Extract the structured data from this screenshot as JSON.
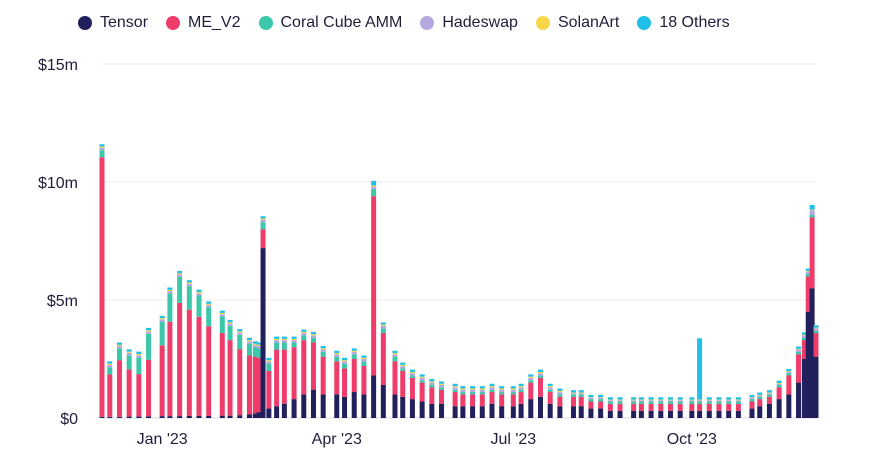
{
  "chart_data": {
    "type": "bar",
    "stacked": true,
    "title": "",
    "xlabel": "",
    "ylabel": "",
    "ylim": [
      0,
      15
    ],
    "y_unit": "millions USD",
    "y_ticks": [
      "$0",
      "$5m",
      "$10m",
      "$15m"
    ],
    "y_tick_values": [
      0,
      5,
      10,
      15
    ],
    "x_ticks": [
      "Jan '23",
      "Apr '23",
      "Jul '23",
      "Oct '23"
    ],
    "x_tick_dates": [
      "2023-01-01",
      "2023-04-01",
      "2023-07-01",
      "2023-10-01"
    ],
    "grid": true,
    "legend_position": "top-left",
    "series_names": [
      "Tensor",
      "ME_V2",
      "Coral Cube AMM",
      "Hadeswap",
      "SolanArt",
      "18 Others"
    ],
    "colors": [
      "#22205c",
      "#ee3d6a",
      "#3cc7aa",
      "#b5a8e0",
      "#f7d64a",
      "#1fc1e8"
    ],
    "dates": [
      "2022-12-01",
      "2022-12-05",
      "2022-12-10",
      "2022-12-15",
      "2022-12-20",
      "2022-12-25",
      "2023-01-01",
      "2023-01-05",
      "2023-01-10",
      "2023-01-15",
      "2023-01-20",
      "2023-01-25",
      "2023-02-01",
      "2023-02-05",
      "2023-02-10",
      "2023-02-15",
      "2023-02-18",
      "2023-02-20",
      "2023-02-22",
      "2023-02-25",
      "2023-03-01",
      "2023-03-05",
      "2023-03-10",
      "2023-03-15",
      "2023-03-20",
      "2023-03-25",
      "2023-04-01",
      "2023-04-05",
      "2023-04-10",
      "2023-04-15",
      "2023-04-20",
      "2023-04-25",
      "2023-05-01",
      "2023-05-05",
      "2023-05-10",
      "2023-05-15",
      "2023-05-20",
      "2023-05-25",
      "2023-06-01",
      "2023-06-05",
      "2023-06-10",
      "2023-06-15",
      "2023-06-20",
      "2023-06-25",
      "2023-07-01",
      "2023-07-05",
      "2023-07-10",
      "2023-07-15",
      "2023-07-20",
      "2023-07-25",
      "2023-08-01",
      "2023-08-05",
      "2023-08-10",
      "2023-08-15",
      "2023-08-20",
      "2023-08-25",
      "2023-09-01",
      "2023-09-05",
      "2023-09-10",
      "2023-09-15",
      "2023-09-20",
      "2023-09-25",
      "2023-10-01",
      "2023-10-05",
      "2023-10-10",
      "2023-10-15",
      "2023-10-20",
      "2023-10-25",
      "2023-11-01",
      "2023-11-05",
      "2023-11-10",
      "2023-11-15",
      "2023-11-20",
      "2023-11-25",
      "2023-11-28",
      "2023-11-30",
      "2023-12-02",
      "2023-12-04"
    ],
    "series": [
      {
        "name": "Tensor",
        "values": [
          0.05,
          0.05,
          0.05,
          0.06,
          0.06,
          0.07,
          0.08,
          0.08,
          0.08,
          0.09,
          0.09,
          0.09,
          0.1,
          0.1,
          0.12,
          0.15,
          0.2,
          0.25,
          7.2,
          0.4,
          0.5,
          0.6,
          0.8,
          1.0,
          1.2,
          1.0,
          1.0,
          0.9,
          1.1,
          1.0,
          1.8,
          1.4,
          1.0,
          0.9,
          0.8,
          0.7,
          0.6,
          0.6,
          0.5,
          0.5,
          0.5,
          0.5,
          0.6,
          0.5,
          0.5,
          0.6,
          0.8,
          0.9,
          0.6,
          0.5,
          0.5,
          0.5,
          0.4,
          0.4,
          0.3,
          0.3,
          0.3,
          0.3,
          0.3,
          0.3,
          0.3,
          0.3,
          0.3,
          0.3,
          0.3,
          0.3,
          0.3,
          0.3,
          0.4,
          0.5,
          0.6,
          0.8,
          1.0,
          1.5,
          2.5,
          4.5,
          5.5,
          2.6
        ]
      },
      {
        "name": "ME_V2",
        "values": [
          11.0,
          1.8,
          2.4,
          2.0,
          1.8,
          2.4,
          3.0,
          4.0,
          4.8,
          4.5,
          4.2,
          3.8,
          3.5,
          3.2,
          2.8,
          2.5,
          2.4,
          2.3,
          0.8,
          1.6,
          2.4,
          2.3,
          2.2,
          2.3,
          2.0,
          1.6,
          1.4,
          1.2,
          1.4,
          1.2,
          7.6,
          2.2,
          1.4,
          1.1,
          0.9,
          0.8,
          0.7,
          0.6,
          0.6,
          0.5,
          0.5,
          0.5,
          0.5,
          0.5,
          0.5,
          0.5,
          0.7,
          0.8,
          0.5,
          0.4,
          0.4,
          0.4,
          0.3,
          0.3,
          0.3,
          0.3,
          0.3,
          0.3,
          0.3,
          0.3,
          0.3,
          0.3,
          0.3,
          0.3,
          0.3,
          0.3,
          0.3,
          0.3,
          0.3,
          0.3,
          0.3,
          0.5,
          0.8,
          1.2,
          0.8,
          1.5,
          3.0,
          1.0
        ]
      },
      {
        "name": "Coral Cube AMM",
        "values": [
          0.3,
          0.3,
          0.5,
          0.6,
          0.7,
          1.1,
          1.0,
          1.2,
          1.1,
          1.0,
          0.9,
          0.8,
          0.7,
          0.6,
          0.6,
          0.5,
          0.4,
          0.4,
          0.3,
          0.3,
          0.3,
          0.3,
          0.2,
          0.2,
          0.2,
          0.2,
          0.2,
          0.2,
          0.2,
          0.2,
          0.3,
          0.2,
          0.2,
          0.1,
          0.1,
          0.1,
          0.1,
          0.1,
          0.1,
          0.1,
          0.1,
          0.1,
          0.1,
          0.1,
          0.1,
          0.1,
          0.1,
          0.1,
          0.1,
          0.1,
          0.1,
          0.1,
          0.1,
          0.1,
          0.1,
          0.1,
          0.1,
          0.1,
          0.1,
          0.1,
          0.1,
          0.1,
          0.1,
          0.1,
          0.1,
          0.1,
          0.1,
          0.1,
          0.1,
          0.1,
          0.1,
          0.1,
          0.1,
          0.1,
          0.1,
          0.1,
          0.1,
          0.1
        ]
      },
      {
        "name": "Hadeswap",
        "values": [
          0.1,
          0.1,
          0.1,
          0.1,
          0.1,
          0.1,
          0.1,
          0.1,
          0.1,
          0.1,
          0.1,
          0.1,
          0.1,
          0.1,
          0.1,
          0.1,
          0.1,
          0.1,
          0.1,
          0.1,
          0.1,
          0.1,
          0.1,
          0.1,
          0.1,
          0.1,
          0.1,
          0.1,
          0.1,
          0.1,
          0.1,
          0.1,
          0.1,
          0.1,
          0.1,
          0.1,
          0.1,
          0.1,
          0.1,
          0.1,
          0.1,
          0.1,
          0.1,
          0.1,
          0.1,
          0.1,
          0.1,
          0.1,
          0.1,
          0.1,
          0.05,
          0.05,
          0.05,
          0.05,
          0.05,
          0.05,
          0.05,
          0.05,
          0.05,
          0.05,
          0.05,
          0.05,
          0.05,
          0.05,
          0.05,
          0.05,
          0.05,
          0.05,
          0.05,
          0.05,
          0.05,
          0.05,
          0.05,
          0.1,
          0.1,
          0.1,
          0.2,
          0.1
        ]
      },
      {
        "name": "SolanArt",
        "values": [
          0.05,
          0.05,
          0.05,
          0.05,
          0.05,
          0.05,
          0.05,
          0.05,
          0.05,
          0.05,
          0.05,
          0.05,
          0.05,
          0.05,
          0.05,
          0.05,
          0.05,
          0.05,
          0.05,
          0.05,
          0.05,
          0.05,
          0.05,
          0.05,
          0.05,
          0.05,
          0.05,
          0.05,
          0.05,
          0.05,
          0.05,
          0.05,
          0.05,
          0.05,
          0.05,
          0.05,
          0.05,
          0.05,
          0.05,
          0.05,
          0.05,
          0.05,
          0.05,
          0.05,
          0.05,
          0.05,
          0.05,
          0.05,
          0.05,
          0.05,
          0.03,
          0.03,
          0.03,
          0.03,
          0.03,
          0.03,
          0.03,
          0.03,
          0.03,
          0.03,
          0.03,
          0.03,
          0.03,
          0.03,
          0.03,
          0.03,
          0.03,
          0.03,
          0.03,
          0.03,
          0.03,
          0.03,
          0.03,
          0.03,
          0.03,
          0.03,
          0.03,
          0.03
        ]
      },
      {
        "name": "18 Others",
        "values": [
          0.1,
          0.1,
          0.1,
          0.1,
          0.1,
          0.1,
          0.1,
          0.1,
          0.1,
          0.1,
          0.1,
          0.1,
          0.1,
          0.1,
          0.1,
          0.1,
          0.1,
          0.1,
          0.1,
          0.1,
          0.1,
          0.1,
          0.1,
          0.1,
          0.1,
          0.1,
          0.1,
          0.1,
          0.1,
          0.1,
          0.2,
          0.1,
          0.1,
          0.1,
          0.1,
          0.1,
          0.1,
          0.1,
          0.1,
          0.1,
          0.1,
          0.1,
          0.1,
          0.1,
          0.1,
          0.1,
          0.1,
          0.1,
          0.1,
          0.1,
          0.1,
          0.1,
          0.1,
          0.1,
          0.1,
          0.1,
          0.1,
          0.1,
          0.1,
          0.1,
          0.1,
          0.1,
          0.1,
          2.6,
          0.1,
          0.1,
          0.1,
          0.1,
          0.1,
          0.1,
          0.1,
          0.1,
          0.1,
          0.1,
          0.1,
          0.1,
          0.2,
          0.1
        ]
      }
    ]
  }
}
